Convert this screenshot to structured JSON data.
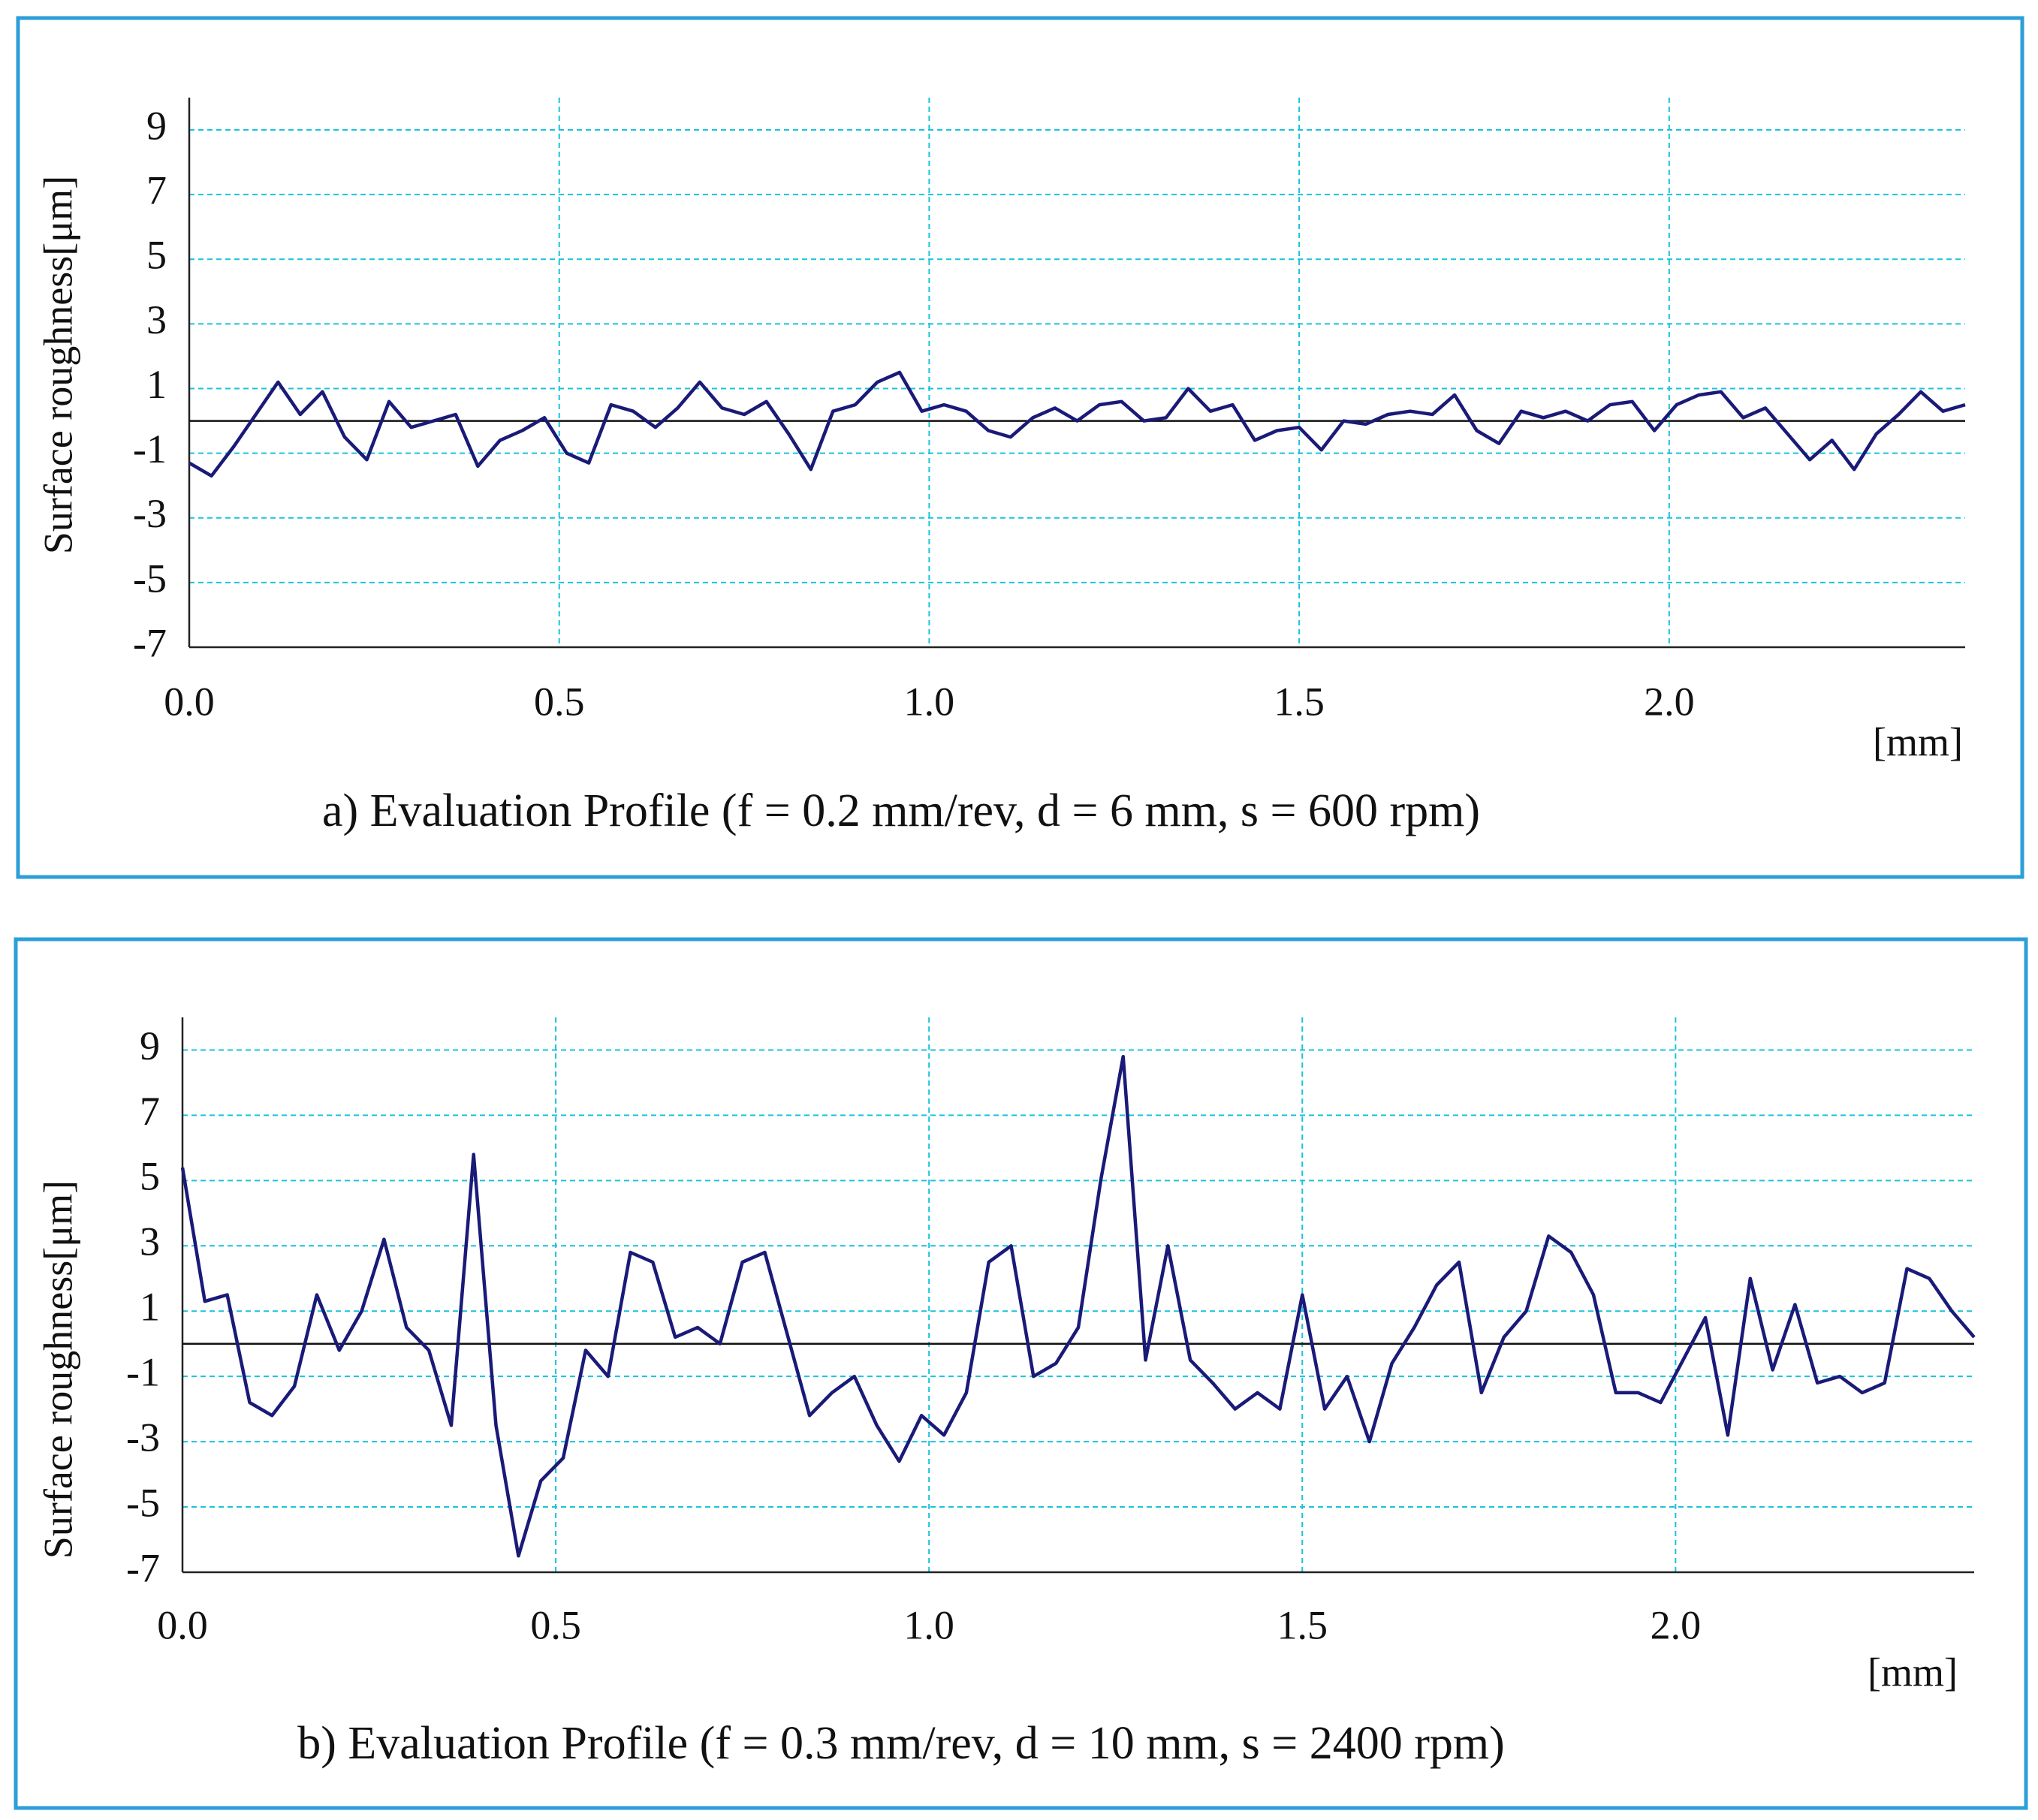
{
  "chart_data": [
    {
      "type": "line",
      "title": "a) Evaluation Profile (f = 0.2 mm/rev, d = 6 mm, s = 600 rpm)",
      "ylabel": "Surface roughness[μm]",
      "xlabel": "[mm]",
      "xlim": [
        0,
        2.4
      ],
      "ylim": [
        -7,
        10
      ],
      "xticks": [
        {
          "value": 0,
          "label": "0.0"
        },
        0.5,
        {
          "value": 1,
          "label": "1.0"
        },
        1.5,
        {
          "value": 2,
          "label": "2.0"
        }
      ],
      "yticks": [
        9,
        7,
        5,
        3,
        1,
        -1,
        -3,
        -5,
        -7
      ],
      "grid": true,
      "reference_line": 0,
      "x": [
        0,
        0.03,
        0.06,
        0.09,
        0.12,
        0.15,
        0.18,
        0.21,
        0.24,
        0.27,
        0.3,
        0.33,
        0.36,
        0.39,
        0.42,
        0.45,
        0.48,
        0.51,
        0.54,
        0.57,
        0.6,
        0.63,
        0.66,
        0.69,
        0.72,
        0.75,
        0.78,
        0.81,
        0.84,
        0.87,
        0.9,
        0.93,
        0.96,
        0.99,
        1.02,
        1.05,
        1.08,
        1.11,
        1.14,
        1.17,
        1.2,
        1.23,
        1.26,
        1.29,
        1.32,
        1.35,
        1.38,
        1.41,
        1.44,
        1.47,
        1.5,
        1.53,
        1.56,
        1.59,
        1.62,
        1.65,
        1.68,
        1.71,
        1.74,
        1.77,
        1.8,
        1.83,
        1.86,
        1.89,
        1.92,
        1.95,
        1.98,
        2.01,
        2.04,
        2.07,
        2.1,
        2.13,
        2.16,
        2.19,
        2.22,
        2.25,
        2.28,
        2.31,
        2.34,
        2.37,
        2.4
      ],
      "series": [
        {
          "color": "#1a1a78",
          "values": [
            -1.3,
            -1.7,
            -0.8,
            0.2,
            1.2,
            0.2,
            0.9,
            -0.5,
            -1.2,
            0.6,
            -0.2,
            0,
            0.2,
            -1.4,
            -0.6,
            -0.3,
            0.1,
            -1,
            -1.3,
            0.5,
            0.3,
            -0.2,
            0.4,
            1.2,
            0.4,
            0.2,
            0.6,
            -0.4,
            -1.5,
            0.3,
            0.5,
            1.2,
            1.5,
            0.3,
            0.5,
            0.3,
            -0.3,
            -0.5,
            0.1,
            0.4,
            0,
            0.5,
            0.6,
            0,
            0.1,
            1,
            0.3,
            0.5,
            -0.6,
            -0.3,
            -0.2,
            -0.9,
            0,
            -0.1,
            0.2,
            0.3,
            0.2,
            0.8,
            -0.3,
            -0.7,
            0.3,
            0.1,
            0.3,
            0,
            0.5,
            0.6,
            -0.3,
            0.5,
            0.8,
            0.9,
            0.1,
            0.4,
            -0.4,
            -1.2,
            -0.6,
            -1.5,
            -0.4,
            0.2,
            0.9,
            0.3,
            0.5
          ]
        }
      ]
    },
    {
      "type": "line",
      "title": "b) Evaluation Profile (f = 0.3 mm/rev, d = 10 mm, s = 2400 rpm)",
      "ylabel": "Surface roughness[μm]",
      "xlabel": "[mm]",
      "xlim": [
        0,
        2.4
      ],
      "ylim": [
        -7,
        10
      ],
      "xticks": [
        {
          "value": 0,
          "label": "0.0"
        },
        0.5,
        {
          "value": 1,
          "label": "1.0"
        },
        1.5,
        {
          "value": 2,
          "label": "2.0"
        }
      ],
      "yticks": [
        9,
        7,
        5,
        3,
        1,
        -1,
        -3,
        -5,
        -7
      ],
      "grid": true,
      "reference_line": 0,
      "x": [
        0,
        0.03,
        0.06,
        0.09,
        0.12,
        0.15,
        0.18,
        0.21,
        0.24,
        0.27,
        0.3,
        0.33,
        0.36,
        0.39,
        0.42,
        0.45,
        0.48,
        0.51,
        0.54,
        0.57,
        0.6,
        0.63,
        0.66,
        0.69,
        0.72,
        0.75,
        0.78,
        0.81,
        0.84,
        0.87,
        0.9,
        0.93,
        0.96,
        0.99,
        1.02,
        1.05,
        1.08,
        1.11,
        1.14,
        1.17,
        1.2,
        1.23,
        1.26,
        1.29,
        1.32,
        1.35,
        1.38,
        1.41,
        1.44,
        1.47,
        1.5,
        1.53,
        1.56,
        1.59,
        1.62,
        1.65,
        1.68,
        1.71,
        1.74,
        1.77,
        1.8,
        1.83,
        1.86,
        1.89,
        1.92,
        1.95,
        1.98,
        2.01,
        2.04,
        2.07,
        2.1,
        2.13,
        2.16,
        2.19,
        2.22,
        2.25,
        2.28,
        2.31,
        2.34,
        2.37,
        2.4
      ],
      "series": [
        {
          "color": "#1a1a78",
          "values": [
            5.4,
            1.3,
            1.5,
            -1.8,
            -2.2,
            -1.3,
            1.5,
            -0.2,
            1,
            3.2,
            0.5,
            -0.2,
            -2.5,
            5.8,
            -2.5,
            -6.5,
            -4.2,
            -3.5,
            -0.2,
            -1,
            2.8,
            2.5,
            0.2,
            0.5,
            0,
            2.5,
            2.8,
            0.3,
            -2.2,
            -1.5,
            -1,
            -2.5,
            -3.6,
            -2.2,
            -2.8,
            -1.5,
            2.5,
            3,
            -1,
            -0.6,
            0.5,
            5,
            8.8,
            -0.5,
            3,
            -0.5,
            -1.2,
            -2,
            -1.5,
            -2,
            1.5,
            -2,
            -1,
            -3,
            -0.6,
            0.5,
            1.8,
            2.5,
            -1.5,
            0.2,
            1,
            3.3,
            2.8,
            1.5,
            -1.5,
            -1.5,
            -1.8,
            -0.5,
            0.8,
            -2.8,
            2,
            -0.8,
            1.2,
            -1.2,
            -1,
            -1.5,
            -1.2,
            2.3,
            2,
            1,
            0.2
          ]
        }
      ]
    }
  ]
}
